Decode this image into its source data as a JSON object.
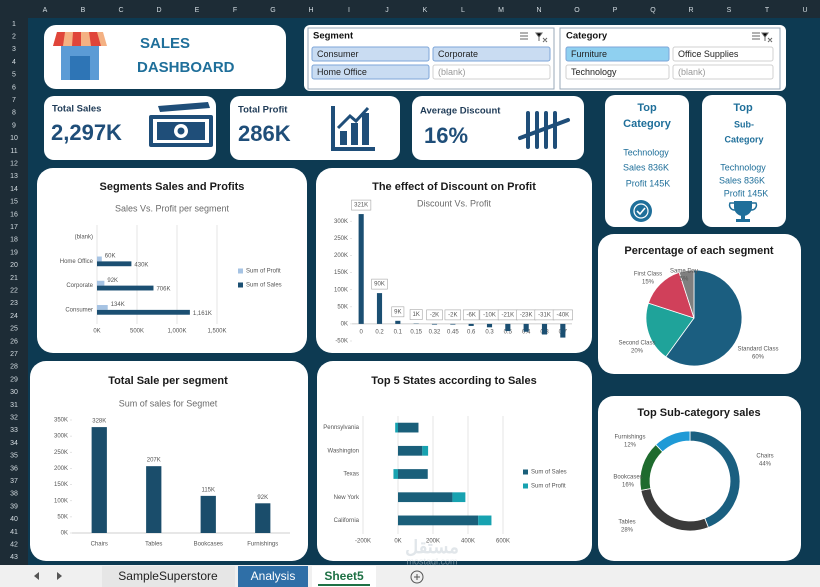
{
  "sheet": {
    "columns": [
      "A",
      "B",
      "C",
      "D",
      "E",
      "F",
      "G",
      "H",
      "I",
      "J",
      "K",
      "L",
      "M",
      "N",
      "O",
      "P",
      "Q",
      "R",
      "S",
      "T",
      "U"
    ],
    "rows": [
      1,
      2,
      3,
      4,
      5,
      6,
      7,
      8,
      9,
      10,
      11,
      12,
      13,
      14,
      15,
      16,
      17,
      18,
      19,
      20,
      21,
      22,
      23,
      24,
      25,
      26,
      27,
      28,
      29,
      30,
      31,
      32,
      33,
      34,
      35,
      36,
      37,
      38,
      39,
      40,
      41,
      42,
      43
    ],
    "tabs": [
      "SampleSuperstore",
      "Analysis",
      "Sheet5"
    ],
    "watermark": [
      "مستقل",
      "mostaql.com"
    ]
  },
  "header": {
    "title_lines": [
      "SALES",
      "DASHBOARD"
    ]
  },
  "slicers": [
    {
      "title": "Segment",
      "items": [
        "Consumer",
        "Corporate",
        "Home Office",
        "(blank)"
      ],
      "selected": [
        true,
        true,
        true,
        false
      ]
    },
    {
      "title": "Category",
      "items": [
        "Furniture",
        "Office Supplies",
        "Technology",
        "(blank)"
      ],
      "selected": [
        true,
        false,
        false,
        false
      ]
    }
  ],
  "kpis": [
    {
      "label": "Total Sales",
      "value": "2,297K"
    },
    {
      "label": "Total Profit",
      "value": "286K"
    },
    {
      "label": "Average Discount",
      "value": "16%"
    }
  ],
  "top_cards": [
    {
      "title_lines": [
        "Top",
        "Category"
      ],
      "name": "Technology",
      "sales": "Sales 836K",
      "profit": "Profit 145K"
    },
    {
      "title_lines": [
        "Top",
        "Sub-",
        "Category"
      ],
      "name": "Technology",
      "sales": "Sales 836K",
      "profit": "Profit 145K"
    }
  ],
  "chart_data": [
    {
      "type": "bar",
      "horizontal": true,
      "title": "Segments Sales and Profits",
      "subtitle": "Sales Vs. Profit per segment",
      "categories": [
        "Consumer",
        "Corporate",
        "Home Office",
        "(blank)"
      ],
      "series": [
        {
          "name": "Sum of Profit",
          "color": "#a6c3e3",
          "values": [
            134,
            92,
            60,
            null
          ],
          "value_labels": [
            "134K",
            "92K",
            "60K",
            null
          ]
        },
        {
          "name": "Sum of Sales",
          "color": "#1b4f72",
          "values": [
            1161,
            706,
            430,
            null
          ],
          "value_labels": [
            "1,161K",
            "706K",
            "430K",
            null
          ]
        }
      ],
      "xlim": [
        0,
        1500
      ],
      "xticks": [
        {
          "value": 0,
          "label": "0K"
        },
        {
          "value": 500,
          "label": "500K"
        },
        {
          "value": 1000,
          "label": "1,000K"
        },
        {
          "value": 1500,
          "label": "1,500K"
        }
      ],
      "grid": true,
      "legend": "right"
    },
    {
      "type": "bar",
      "title": "The effect of Discount on Profit",
      "subtitle": "Discount Vs. Profit",
      "categories": [
        "0",
        "0.2",
        "0.1",
        "0.15",
        "0.32",
        "0.45",
        "0.6",
        "0.3",
        "0.5",
        "0.4",
        "0.8",
        "0.7"
      ],
      "values": [
        321,
        90,
        9,
        1,
        -2,
        -2,
        -6,
        -10,
        -21,
        -23,
        -31,
        -40
      ],
      "value_labels": [
        "321K",
        "90K",
        "9K",
        "1K",
        "-2K",
        "-2K",
        "-6K",
        "-10K",
        "-21K",
        "-23K",
        "-31K",
        "-40K"
      ],
      "color": "#1b4f72",
      "ylim": [
        -50,
        330
      ],
      "yticks": [
        {
          "value": -50,
          "label": "-50K"
        },
        {
          "value": 0,
          "label": "0K"
        },
        {
          "value": 50,
          "label": "50K"
        },
        {
          "value": 100,
          "label": "100K"
        },
        {
          "value": 150,
          "label": "150K"
        },
        {
          "value": 200,
          "label": "200K"
        },
        {
          "value": 250,
          "label": "250K"
        },
        {
          "value": 300,
          "label": "300K"
        }
      ],
      "grid": false
    },
    {
      "type": "bar",
      "title": "Total Sale per segment",
      "subtitle": "Sum of sales for Segmet",
      "categories": [
        "Chairs",
        "Tables",
        "Bookcases",
        "Furnishings"
      ],
      "values": [
        328,
        207,
        115,
        92
      ],
      "value_labels": [
        "328K",
        "207K",
        "115K",
        "92K"
      ],
      "color": "#1a4d6b",
      "ylim": [
        0,
        350
      ],
      "yticks": [
        {
          "value": 0,
          "label": "0K"
        },
        {
          "value": 50,
          "label": "50K"
        },
        {
          "value": 100,
          "label": "100K"
        },
        {
          "value": 150,
          "label": "150K"
        },
        {
          "value": 200,
          "label": "200K"
        },
        {
          "value": 250,
          "label": "250K"
        },
        {
          "value": 300,
          "label": "300K"
        },
        {
          "value": 350,
          "label": "350K"
        }
      ],
      "grid": false
    },
    {
      "type": "bar",
      "horizontal": true,
      "stacked": true,
      "title": "Top 5 States according to Sales",
      "categories": [
        "California",
        "New York",
        "Texas",
        "Washington",
        "Pennsylvania"
      ],
      "series": [
        {
          "name": "Sum of Sales",
          "color": "#1a5f7a",
          "values": [
            458,
            311,
            170,
            139,
            117
          ]
        },
        {
          "name": "Sum of Profit",
          "color": "#17a2b0",
          "values": [
            76,
            74,
            -26,
            33,
            -16
          ]
        }
      ],
      "xlim": [
        -200,
        600
      ],
      "xticks": [
        {
          "value": -200,
          "label": "-200K"
        },
        {
          "value": 0,
          "label": "0K"
        },
        {
          "value": 200,
          "label": "200K"
        },
        {
          "value": 400,
          "label": "400K"
        },
        {
          "value": 600,
          "label": "600K"
        }
      ],
      "grid": true,
      "legend": "right"
    },
    {
      "type": "pie",
      "title": "Percentage of each segment",
      "categories": [
        "Standard Class",
        "Second Class",
        "First Class",
        "Same Day"
      ],
      "values": [
        60,
        20,
        15,
        5
      ],
      "value_labels": [
        "60%",
        "20%",
        "15%",
        "5%"
      ],
      "colors": [
        "#1b5e80",
        "#1fa39a",
        "#d0405a",
        "#7f7f7f"
      ]
    },
    {
      "type": "doughnut",
      "title": "Top Sub-category sales",
      "categories": [
        "Chairs",
        "Tables",
        "Bookcases",
        "Furnishings"
      ],
      "values": [
        44,
        28,
        16,
        12
      ],
      "value_labels": [
        "44%",
        "28%",
        "16%",
        "12%"
      ],
      "colors": [
        "#1a5f80",
        "#3a3a3a",
        "#1e6b2e",
        "#1f9ad6"
      ]
    }
  ]
}
